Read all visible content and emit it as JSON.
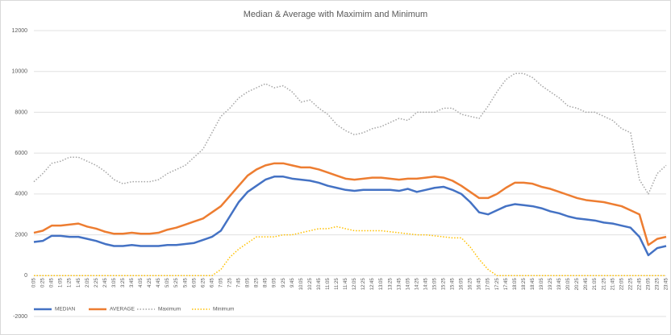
{
  "chart_data": {
    "type": "line",
    "title": "Median & Average with Maximim and Minimum",
    "categories": [
      "0:05",
      "0:25",
      "0:45",
      "1:05",
      "1:25",
      "1:45",
      "2:05",
      "2:25",
      "2:45",
      "3:05",
      "3:25",
      "3:45",
      "4:05",
      "4:25",
      "4:45",
      "5:05",
      "5:25",
      "5:45",
      "6:05",
      "6:25",
      "6:45",
      "7:05",
      "7:25",
      "7:45",
      "8:05",
      "8:25",
      "8:45",
      "9:05",
      "9:25",
      "9:45",
      "10:05",
      "10:25",
      "10:45",
      "11:05",
      "11:25",
      "11:45",
      "12:05",
      "12:25",
      "12:45",
      "13:05",
      "13:25",
      "13:45",
      "14:05",
      "14:25",
      "14:45",
      "15:05",
      "15:25",
      "15:45",
      "16:05",
      "16:25",
      "16:45",
      "17:05",
      "17:25",
      "17:45",
      "18:05",
      "18:25",
      "18:45",
      "19:05",
      "19:25",
      "19:45",
      "20:05",
      "20:25",
      "20:45",
      "21:05",
      "21:25",
      "21:45",
      "22:05",
      "22:25",
      "22:45",
      "23:05",
      "23:25",
      "23:45"
    ],
    "series": [
      {
        "name": "MEDIAN",
        "color": "#4472c4",
        "dash": "solid",
        "values": [
          1650,
          1700,
          1950,
          1950,
          1900,
          1900,
          1800,
          1700,
          1550,
          1450,
          1450,
          1500,
          1450,
          1450,
          1450,
          1500,
          1500,
          1550,
          1600,
          1750,
          1900,
          2200,
          2900,
          3600,
          4100,
          4400,
          4700,
          4850,
          4850,
          4750,
          4700,
          4650,
          4550,
          4400,
          4300,
          4200,
          4150,
          4200,
          4200,
          4200,
          4200,
          4150,
          4250,
          4100,
          4200,
          4300,
          4350,
          4200,
          4000,
          3600,
          3100,
          3000,
          3200,
          3400,
          3500,
          3450,
          3400,
          3300,
          3150,
          3050,
          2900,
          2800,
          2750,
          2700,
          2600,
          2550,
          2450,
          2350,
          1900,
          1000,
          1350,
          1450
        ]
      },
      {
        "name": "AVERAGE",
        "color": "#ed7d31",
        "dash": "solid",
        "values": [
          2100,
          2200,
          2450,
          2450,
          2500,
          2550,
          2400,
          2300,
          2150,
          2050,
          2050,
          2100,
          2050,
          2050,
          2100,
          2250,
          2350,
          2500,
          2650,
          2800,
          3100,
          3400,
          3900,
          4400,
          4900,
          5200,
          5400,
          5500,
          5500,
          5400,
          5300,
          5300,
          5200,
          5050,
          4900,
          4750,
          4700,
          4750,
          4800,
          4800,
          4750,
          4700,
          4750,
          4750,
          4800,
          4850,
          4800,
          4650,
          4400,
          4100,
          3800,
          3800,
          4000,
          4300,
          4550,
          4550,
          4500,
          4350,
          4250,
          4100,
          3950,
          3800,
          3700,
          3650,
          3600,
          3500,
          3400,
          3200,
          3000,
          1500,
          1800,
          1900
        ]
      },
      {
        "name": "Maximum",
        "color": "#a5a5a5",
        "dash": "dotted",
        "values": [
          4600,
          5000,
          5500,
          5600,
          5800,
          5800,
          5600,
          5400,
          5100,
          4700,
          4500,
          4600,
          4600,
          4600,
          4700,
          5000,
          5200,
          5400,
          5800,
          6200,
          7000,
          7800,
          8200,
          8700,
          9000,
          9200,
          9400,
          9200,
          9300,
          9000,
          8500,
          8600,
          8200,
          7900,
          7400,
          7100,
          6900,
          7000,
          7200,
          7300,
          7500,
          7700,
          7600,
          8000,
          8000,
          8000,
          8200,
          8200,
          7900,
          7800,
          7700,
          8300,
          9000,
          9600,
          9900,
          9900,
          9700,
          9300,
          9000,
          8700,
          8300,
          8200,
          8000,
          8000,
          7800,
          7600,
          7200,
          7000,
          4700,
          4000,
          5000,
          5400
        ]
      },
      {
        "name": "Minimum",
        "color": "#ffc000",
        "dash": "dotted",
        "values": [
          0,
          0,
          0,
          0,
          0,
          0,
          0,
          0,
          0,
          0,
          0,
          0,
          0,
          0,
          0,
          0,
          0,
          0,
          0,
          0,
          0,
          300,
          900,
          1300,
          1600,
          1900,
          1900,
          1900,
          2000,
          2000,
          2100,
          2200,
          2300,
          2300,
          2400,
          2300,
          2200,
          2200,
          2200,
          2200,
          2150,
          2100,
          2050,
          2000,
          2000,
          1950,
          1900,
          1850,
          1850,
          1400,
          800,
          300,
          0,
          0,
          0,
          0,
          0,
          0,
          0,
          0,
          0,
          0,
          0,
          0,
          0,
          0,
          0,
          0,
          0,
          0,
          0,
          0
        ]
      }
    ],
    "ylim": [
      -2000,
      12000
    ],
    "yticks": [
      -2000,
      0,
      2000,
      4000,
      6000,
      8000,
      10000,
      12000
    ],
    "grid": true
  }
}
